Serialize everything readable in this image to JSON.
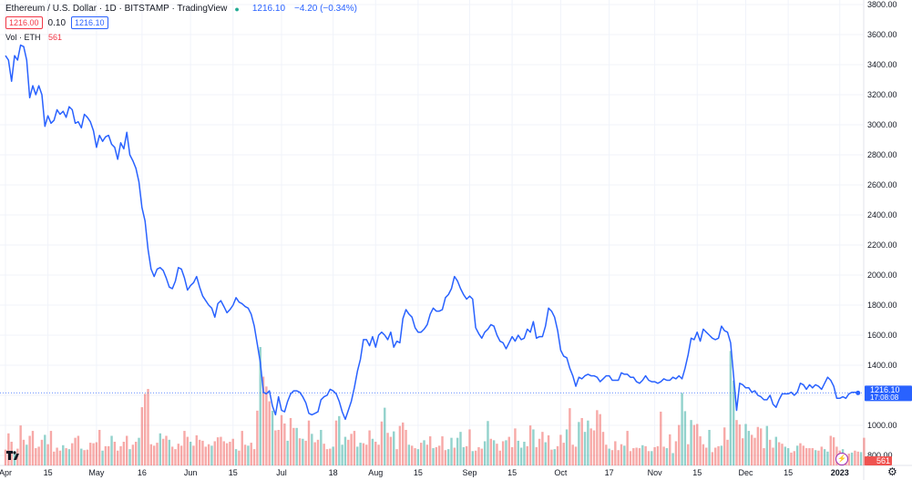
{
  "legend": {
    "title": "Ethereum / U.S. Dollar · 1D · BITSTAMP · TradingView",
    "last": "1216.10",
    "change": "−4.20 (−0.34%)",
    "bid": "1216.00",
    "spread": "0.10",
    "ask": "1216.10",
    "vol_label": "Vol · ETH",
    "vol_value": "561"
  },
  "price_tag": {
    "value": "1216.10",
    "time": "17:08:08"
  },
  "vol_tag": "561",
  "colors": {
    "line": "#2962ff",
    "vol_up": "#26a69a",
    "vol_down": "#ef5350",
    "grid": "#f0f3fa"
  },
  "chart_data": {
    "type": "line",
    "title": "Ethereum / U.S. Dollar · 1D · BITSTAMP · TradingView",
    "xlabel": "",
    "ylabel": "",
    "ylim": [
      700,
      3900
    ],
    "y_ticks": [
      "3800.00",
      "3600.00",
      "3400.00",
      "3200.00",
      "3000.00",
      "2800.00",
      "2600.00",
      "2400.00",
      "2200.00",
      "2000.00",
      "1800.00",
      "1600.00",
      "1400.00",
      "1200.00",
      "1000.00",
      "800.00"
    ],
    "x_ticks": [
      "Apr",
      "15",
      "May",
      "16",
      "Jun",
      "15",
      "Jul",
      "18",
      "Aug",
      "15",
      "Sep",
      "15",
      "Oct",
      "17",
      "Nov",
      "15",
      "Dec",
      "15",
      "2023"
    ],
    "x_tick_days": [
      0,
      14,
      30,
      45,
      61,
      75,
      91,
      108,
      122,
      136,
      153,
      167,
      183,
      199,
      214,
      228,
      244,
      258,
      275
    ],
    "series": [
      {
        "values": [
          3460,
          3430,
          3290,
          3460,
          3430,
          3530,
          3520,
          3430,
          3180,
          3260,
          3200,
          3260,
          3200,
          2990,
          3060,
          3010,
          3030,
          3100,
          3070,
          3090,
          3050,
          3120,
          3100,
          3010,
          3020,
          2980,
          3070,
          3050,
          3020,
          2960,
          2850,
          2930,
          2890,
          2920,
          2930,
          2870,
          2850,
          2770,
          2880,
          2840,
          2950,
          2800,
          2760,
          2710,
          2620,
          2450,
          2360,
          2170,
          2040,
          1990,
          2040,
          2050,
          2030,
          1980,
          1920,
          1910,
          1960,
          2050,
          2040,
          1980,
          1900,
          1930,
          1950,
          1990,
          1920,
          1860,
          1830,
          1800,
          1780,
          1720,
          1810,
          1830,
          1790,
          1750,
          1770,
          1800,
          1850,
          1820,
          1810,
          1790,
          1780,
          1740,
          1660,
          1540,
          1420,
          1220,
          1210,
          1230,
          1130,
          1070,
          1190,
          1100,
          1090,
          1160,
          1210,
          1230,
          1230,
          1220,
          1190,
          1150,
          1080,
          1070,
          1080,
          1090,
          1170,
          1190,
          1200,
          1240,
          1230,
          1210,
          1160,
          1090,
          1040,
          1100,
          1160,
          1250,
          1360,
          1440,
          1570,
          1570,
          1530,
          1590,
          1520,
          1600,
          1620,
          1600,
          1570,
          1620,
          1520,
          1560,
          1550,
          1710,
          1770,
          1740,
          1720,
          1650,
          1620,
          1620,
          1640,
          1670,
          1740,
          1780,
          1760,
          1760,
          1770,
          1850,
          1870,
          1910,
          1990,
          1960,
          1910,
          1870,
          1840,
          1860,
          1840,
          1650,
          1610,
          1580,
          1620,
          1640,
          1670,
          1660,
          1600,
          1560,
          1550,
          1510,
          1550,
          1590,
          1560,
          1600,
          1570,
          1580,
          1640,
          1620,
          1690,
          1580,
          1590,
          1590,
          1660,
          1780,
          1760,
          1720,
          1630,
          1500,
          1460,
          1450,
          1380,
          1330,
          1260,
          1320,
          1310,
          1330,
          1340,
          1330,
          1330,
          1320,
          1290,
          1310,
          1330,
          1330,
          1300,
          1300,
          1300,
          1350,
          1340,
          1340,
          1320,
          1320,
          1290,
          1280,
          1300,
          1330,
          1300,
          1290,
          1290,
          1280,
          1290,
          1310,
          1300,
          1300,
          1320,
          1310,
          1330,
          1310,
          1380,
          1470,
          1580,
          1570,
          1620,
          1560,
          1640,
          1620,
          1600,
          1580,
          1570,
          1580,
          1660,
          1630,
          1620,
          1550,
          1330,
          1100,
          1280,
          1270,
          1250,
          1250,
          1220,
          1230,
          1200,
          1190,
          1170,
          1170,
          1200,
          1140,
          1120,
          1170,
          1210,
          1210,
          1210,
          1220,
          1200,
          1220,
          1280,
          1270,
          1240,
          1270,
          1250,
          1270,
          1260,
          1240,
          1280,
          1320,
          1300,
          1260,
          1180,
          1180,
          1190,
          1180,
          1210,
          1220,
          1220,
          1216.1
        ]
      }
    ],
    "volume": {
      "name": "Vol · ETH",
      "values": [
        320,
        650,
        480,
        290,
        340,
        810,
        520,
        420,
        600,
        700,
        350,
        380,
        520,
        620,
        430,
        700,
        280,
        360,
        300,
        410,
        350,
        330,
        450,
        560,
        600,
        340,
        310,
        320,
        460,
        450,
        470,
        720,
        300,
        390,
        390,
        600,
        480,
        300,
        390,
        480,
        600,
        330,
        420,
        480,
        560,
        1180,
        1450,
        1550,
        430,
        400,
        460,
        650,
        540,
        600,
        520,
        380,
        330,
        440,
        400,
        700,
        580,
        480,
        400,
        610,
        520,
        500,
        380,
        430,
        400,
        490,
        570,
        580,
        490,
        450,
        480,
        540,
        330,
        300,
        700,
        420,
        400,
        460,
        330,
        1110,
        2400,
        1800,
        1600,
        1300,
        1110,
        710,
        720,
        1020,
        850,
        500,
        960,
        760,
        760,
        550,
        540,
        500,
        910,
        640,
        470,
        520,
        720,
        440,
        330,
        340,
        380,
        910,
        1000,
        420,
        580,
        520,
        640,
        700,
        380,
        460,
        450,
        420,
        710,
        540,
        480,
        420,
        890,
        1170,
        660,
        580,
        690,
        330,
        800,
        870,
        720,
        420,
        400,
        350,
        330,
        460,
        510,
        420,
        590,
        350,
        370,
        400,
        590,
        310,
        330,
        560,
        360,
        560,
        680,
        370,
        390,
        730,
        290,
        300,
        370,
        340,
        490,
        900,
        540,
        510,
        440,
        300,
        490,
        510,
        580,
        370,
        750,
        500,
        360,
        480,
        390,
        810,
        730,
        370,
        540,
        680,
        470,
        610,
        320,
        330,
        390,
        620,
        460,
        730,
        1160,
        420,
        380,
        880,
        960,
        680,
        910,
        750,
        710,
        1120,
        1040,
        680,
        420,
        340,
        310,
        490,
        310,
        430,
        400,
        700,
        290,
        350,
        360,
        350,
        410,
        390,
        290,
        290,
        370,
        390,
        1090,
        380,
        350,
        630,
        250,
        490,
        820,
        1470,
        1100,
        430,
        920,
        820,
        840,
        590,
        430,
        360,
        720,
        270,
        360,
        390,
        400,
        770,
        520,
        2320,
        1720,
        920,
        830,
        550,
        840,
        700,
        620,
        560,
        780,
        750,
        350,
        800,
        520,
        360,
        580,
        470,
        440,
        380,
        350,
        260,
        290,
        400,
        450,
        400,
        350,
        350,
        350,
        310,
        300,
        380,
        330,
        280,
        600,
        570,
        380,
        300,
        330,
        200,
        240,
        260,
        300,
        280,
        270,
        561
      ],
      "colors": "rrrgrrrgrrrrrgrrrrrgrgrrrgrrrrrrgrrgrrrrrgrrgrrrrrrgrrgrrrrrrgrrrrrrgrrrrrrrgrrrgrrrgrrrgrrrrgrrgrgrrgrrgrrrgrgggrrrggrrrgrrrgrrgrrrrgrrgrgrrgrrrrggrgggrrgrrrggrgrrrgrrrgggrrgrrrgrrgrrrgrrrgrggrrrrrrgrrrrgrrrrrgrrgrrrrgrgrrggrgrrrrrgrrrgrrggrrrggrrrrrgrrgrrggrrgrrrrrgrrggrrrrgrrgrrgrgrrrgrrrrgrgrgr"
    }
  }
}
